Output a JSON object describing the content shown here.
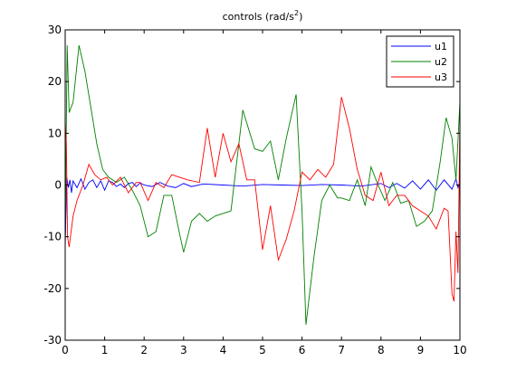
{
  "chart_data": {
    "type": "line",
    "title_main": "controls (rad/s",
    "title_sup": "2",
    "title_end": ")",
    "xlabel": "",
    "ylabel": "",
    "xlim": [
      0,
      10
    ],
    "ylim": [
      -30,
      30
    ],
    "xticks": [
      0,
      1,
      2,
      3,
      4,
      5,
      6,
      7,
      8,
      9,
      10
    ],
    "yticks": [
      -30,
      -20,
      -10,
      0,
      10,
      20,
      30
    ],
    "grid": false,
    "legend_position": "top-right",
    "series": [
      {
        "name": "u1",
        "color": "#0000ff",
        "x": [
          0,
          0.04,
          0.08,
          0.12,
          0.16,
          0.2,
          0.3,
          0.4,
          0.5,
          0.6,
          0.7,
          0.8,
          0.9,
          1.0,
          1.1,
          1.2,
          1.3,
          1.4,
          1.5,
          1.6,
          1.7,
          1.8,
          1.9,
          2.0,
          2.2,
          2.4,
          2.6,
          2.8,
          3.0,
          3.2,
          3.5,
          4.0,
          4.5,
          5.0,
          5.5,
          6.0,
          6.5,
          7.0,
          7.5,
          8.0,
          8.2,
          8.4,
          8.6,
          8.8,
          9.0,
          9.2,
          9.4,
          9.6,
          9.8,
          9.9,
          9.95,
          10.0
        ],
        "y": [
          -12,
          1.5,
          -0.5,
          1.0,
          -1.5,
          0.8,
          -0.5,
          1.2,
          -0.8,
          0.5,
          1.0,
          -0.5,
          0.8,
          -1.0,
          0.8,
          0.5,
          -0.3,
          0.2,
          -0.5,
          0.3,
          0.5,
          -0.3,
          0.4,
          0.0,
          -0.3,
          0.5,
          -0.2,
          -0.5,
          0.3,
          -0.3,
          0.2,
          0.0,
          -0.2,
          0.1,
          0.0,
          -0.1,
          0.1,
          0.0,
          -0.2,
          0.3,
          -0.5,
          0.3,
          -0.6,
          0.8,
          -0.8,
          1.0,
          -1.0,
          1.0,
          -0.8,
          1.2,
          -0.5,
          0.5
        ]
      },
      {
        "name": "u2",
        "color": "#008000",
        "x": [
          0,
          0.05,
          0.1,
          0.2,
          0.35,
          0.5,
          0.65,
          0.8,
          0.95,
          1.1,
          1.3,
          1.5,
          1.7,
          1.9,
          2.1,
          2.3,
          2.5,
          2.7,
          2.9,
          3.0,
          3.2,
          3.4,
          3.6,
          3.8,
          4.0,
          4.2,
          4.5,
          4.8,
          5.0,
          5.2,
          5.4,
          5.6,
          5.85,
          6.0,
          6.1,
          6.3,
          6.5,
          6.7,
          6.9,
          7.0,
          7.2,
          7.4,
          7.6,
          7.75,
          7.9,
          8.1,
          8.3,
          8.5,
          8.7,
          8.9,
          9.1,
          9.3,
          9.5,
          9.65,
          9.8,
          9.9,
          9.95,
          10.0
        ],
        "y": [
          -10,
          27,
          14,
          16,
          27,
          22,
          15,
          8,
          3,
          1.5,
          0.5,
          1.5,
          -1.0,
          -4.0,
          -10.0,
          -9.0,
          -2.0,
          -2.0,
          -9.5,
          -13.0,
          -7.0,
          -5.5,
          -7.0,
          -6.0,
          -5.5,
          -5.0,
          14.5,
          7.0,
          6.5,
          8.5,
          1.0,
          9.0,
          17.5,
          -5.0,
          -27.0,
          -14.0,
          -3.0,
          0.0,
          -2.5,
          -2.5,
          -3.0,
          1.0,
          -4.0,
          3.5,
          0.5,
          -3.0,
          0.5,
          -3.5,
          -3.0,
          -8.0,
          -7.0,
          -5.0,
          4.5,
          13.0,
          9.0,
          1.0,
          8.5,
          16.0
        ]
      },
      {
        "name": "u3",
        "color": "#ff0000",
        "x": [
          0,
          0.03,
          0.06,
          0.1,
          0.2,
          0.3,
          0.45,
          0.6,
          0.75,
          0.9,
          1.05,
          1.2,
          1.4,
          1.6,
          1.8,
          1.9,
          2.1,
          2.3,
          2.5,
          2.7,
          2.9,
          3.1,
          3.4,
          3.6,
          3.8,
          4.0,
          4.2,
          4.4,
          4.6,
          4.8,
          5.0,
          5.2,
          5.4,
          5.6,
          5.8,
          6.0,
          6.2,
          6.4,
          6.6,
          6.8,
          7.0,
          7.2,
          7.4,
          7.6,
          7.8,
          8.0,
          8.2,
          8.4,
          8.6,
          8.8,
          9.0,
          9.2,
          9.4,
          9.6,
          9.7,
          9.8,
          9.85,
          9.9,
          9.95,
          10.0
        ],
        "y": [
          12,
          8,
          -10,
          -12,
          -6,
          -3,
          0,
          4,
          2,
          1,
          1.5,
          0,
          1.5,
          -1.5,
          0.5,
          0.5,
          -3.0,
          0.5,
          -0.5,
          2.0,
          1.5,
          1.0,
          0.5,
          11.0,
          1.5,
          10.0,
          4.5,
          8.0,
          1.0,
          1.0,
          -12.5,
          -4.0,
          -14.5,
          -10.5,
          -5.0,
          2.5,
          1.0,
          3.0,
          1.5,
          4.0,
          17.0,
          11.0,
          3.0,
          -2.0,
          -3.0,
          2.5,
          -4.0,
          -2.0,
          -2.0,
          -4.0,
          -5.0,
          -6.0,
          -8.5,
          -4.5,
          -5.0,
          -21.0,
          -22.5,
          -9.0,
          -17.0,
          12.0
        ]
      }
    ]
  }
}
